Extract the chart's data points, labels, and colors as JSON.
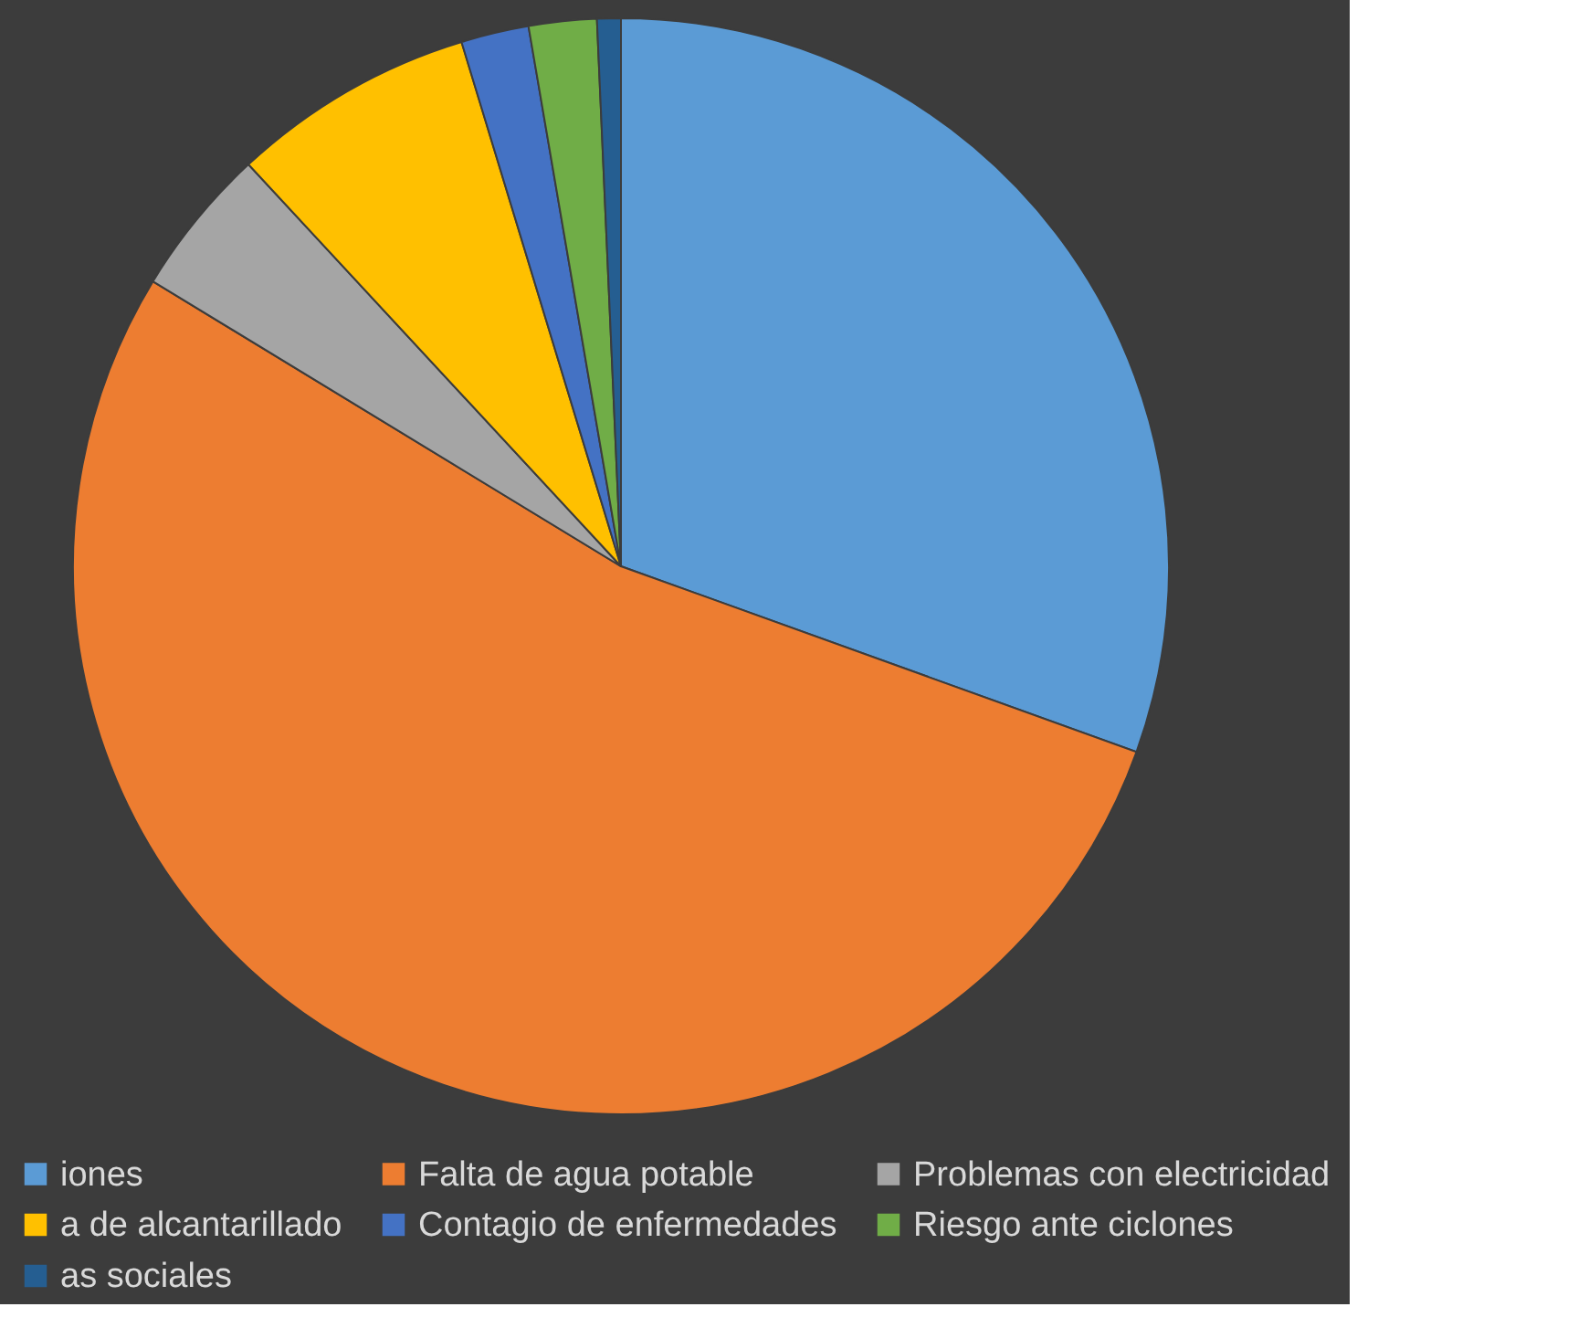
{
  "chart_data": {
    "type": "pie",
    "categories": [
      "iones",
      "Falta de agua potable",
      "Problemas con electricidad",
      "a de alcantarillado",
      "Contagio de enfermedades",
      "Riesgo ante ciclones",
      "as sociales"
    ],
    "values": [
      30.5,
      53.2,
      4.4,
      7.2,
      2.0,
      2.0,
      0.7
    ],
    "colors": [
      "#5b9bd5",
      "#ed7d31",
      "#a5a5a5",
      "#ffc000",
      "#4472c4",
      "#70ad47",
      "#255e91"
    ],
    "legend": "bottom"
  }
}
